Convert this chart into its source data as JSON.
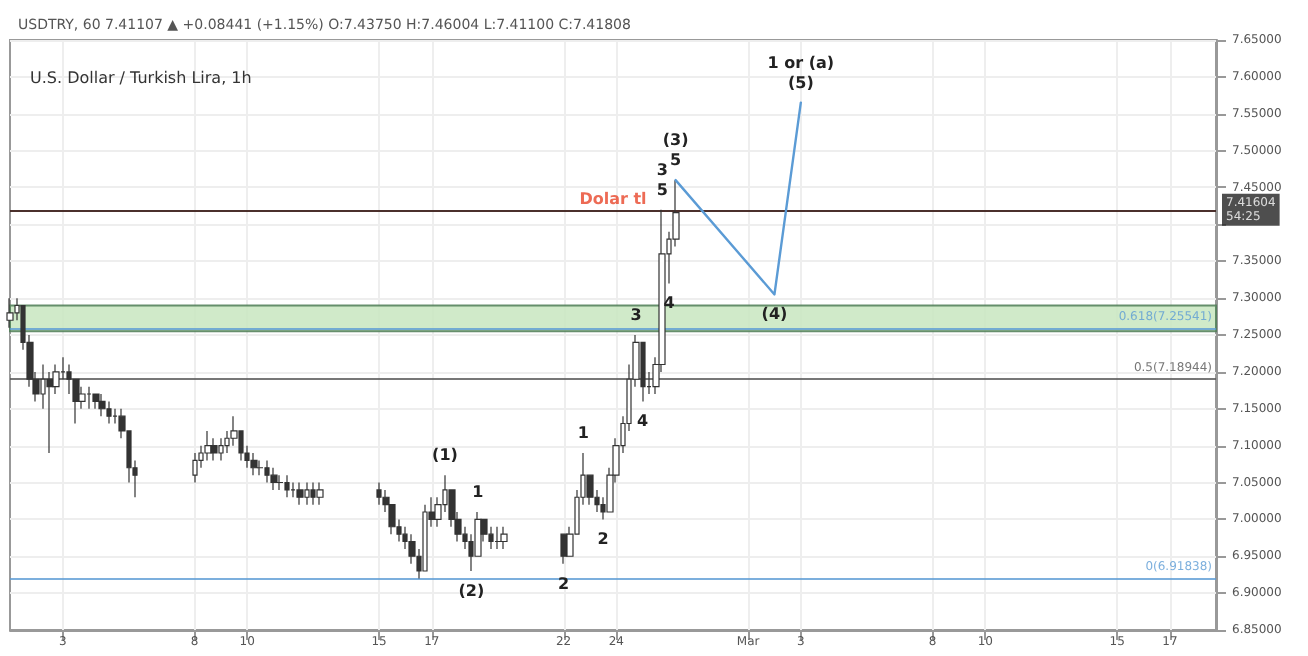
{
  "chart_data": {
    "type": "candlestick",
    "title": "U.S. Dollar / Turkish Lira, 1h",
    "subtitle": "USDTRY, 60 7.41107 ▲ +0.08441 (+1.15%) O:7.43750 H:7.46004 L:7.41100 C:7.41808",
    "color": "#333333",
    "grid": true,
    "xlim": [
      "--02-01T00:00",
      "--03-18T18:00"
    ],
    "xticks": [
      {
        "value": "--02-03",
        "label": "3"
      },
      {
        "value": "--02-08",
        "label": "8"
      },
      {
        "value": "--02-10",
        "label": "10"
      },
      {
        "value": "--02-15",
        "label": "15"
      },
      {
        "value": "--02-17",
        "label": "17"
      },
      {
        "value": "--02-22",
        "label": "22"
      },
      {
        "value": "--02-24",
        "label": "24"
      },
      {
        "value": "--03-01",
        "label": "Mar"
      },
      {
        "value": "--03-03",
        "label": "3"
      },
      {
        "value": "--03-08",
        "label": "8"
      },
      {
        "value": "--03-10",
        "label": "10"
      },
      {
        "value": "--03-15",
        "label": "15"
      },
      {
        "value": "--03-17",
        "label": "17"
      }
    ],
    "ylim": [
      6.85,
      7.65
    ],
    "yticks": [
      {
        "value": 6.85,
        "label": "6.85000"
      },
      {
        "value": 6.9,
        "label": "6.90000"
      },
      {
        "value": 6.95,
        "label": "6.95000"
      },
      {
        "value": 7.0,
        "label": "7.00000"
      },
      {
        "value": 7.05,
        "label": "7.05000"
      },
      {
        "value": 7.1,
        "label": "7.10000"
      },
      {
        "value": 7.15,
        "label": "7.15000"
      },
      {
        "value": 7.2,
        "label": "7.20000"
      },
      {
        "value": 7.25,
        "label": "7.25000"
      },
      {
        "value": 7.3,
        "label": "7.30000"
      },
      {
        "value": 7.35,
        "label": "7.35000"
      },
      {
        "value": 7.4,
        "label": null
      },
      {
        "value": 7.45,
        "label": "7.45000"
      },
      {
        "value": 7.5,
        "label": "7.50000"
      },
      {
        "value": 7.55,
        "label": "7.55000"
      },
      {
        "value": 7.6,
        "label": "7.60000"
      },
      {
        "value": 7.65,
        "label": "7.65000"
      }
    ],
    "x": [
      "--02-01T00:00",
      "--02-01T06:00",
      "--02-01T12:00",
      "--02-01T18:00",
      "--02-02T00:00",
      "--02-02T06:00",
      "--02-02T12:00",
      "--02-02T18:00",
      "--02-03T00:00",
      "--02-03T06:00",
      "--02-03T12:00",
      "--02-03T18:00",
      "--02-04T00:00",
      "--02-04T06:00",
      "--02-04T12:00",
      "--02-04T18:00",
      "--02-05T00:00",
      "--02-05T06:00",
      "--02-05T12:00",
      "--02-05T18:00",
      "--02-08T00:00",
      "--02-08T06:00",
      "--02-08T12:00",
      "--02-08T18:00",
      "--02-09T00:00",
      "--02-09T06:00",
      "--02-09T12:00",
      "--02-09T18:00",
      "--02-10T00:00",
      "--02-10T06:00",
      "--02-10T12:00",
      "--02-10T18:00",
      "--02-11T00:00",
      "--02-11T06:00",
      "--02-11T12:00",
      "--02-11T18:00",
      "--02-12T00:00",
      "--02-12T06:00",
      "--02-12T12:00",
      "--02-12T18:00",
      "--02-15T00:00",
      "--02-15T06:00",
      "--02-15T12:00",
      "--02-15T18:00",
      "--02-16T00:00",
      "--02-16T06:00",
      "--02-16T12:00",
      "--02-16T18:00",
      "--02-17T00:00",
      "--02-17T06:00",
      "--02-17T12:00",
      "--02-17T18:00",
      "--02-18T00:00",
      "--02-18T06:00",
      "--02-18T12:00",
      "--02-18T18:00",
      "--02-19T00:00",
      "--02-19T06:00",
      "--02-19T12:00",
      "--02-19T18:00",
      "--02-22T00:00",
      "--02-22T06:00",
      "--02-22T12:00",
      "--02-22T18:00",
      "--02-23T00:00",
      "--02-23T06:00",
      "--02-23T12:00",
      "--02-23T18:00",
      "--02-24T00:00",
      "--02-24T06:00",
      "--02-24T12:00",
      "--02-24T18:00",
      "--02-25T00:00",
      "--02-25T06:00",
      "--02-25T12:00",
      "--02-25T18:00",
      "--02-26T00:00",
      "--02-26T06:00"
    ],
    "ohlc": [
      [
        7.27,
        7.3,
        7.26,
        7.28
      ],
      [
        7.28,
        7.3,
        7.27,
        7.29
      ],
      [
        7.29,
        7.29,
        7.23,
        7.24
      ],
      [
        7.24,
        7.25,
        7.18,
        7.19
      ],
      [
        7.19,
        7.2,
        7.16,
        7.17
      ],
      [
        7.17,
        7.21,
        7.15,
        7.19
      ],
      [
        7.19,
        7.2,
        7.09,
        7.18
      ],
      [
        7.18,
        7.21,
        7.17,
        7.2
      ],
      [
        7.2,
        7.22,
        7.19,
        7.2
      ],
      [
        7.2,
        7.21,
        7.17,
        7.19
      ],
      [
        7.19,
        7.19,
        7.13,
        7.16
      ],
      [
        7.16,
        7.18,
        7.15,
        7.17
      ],
      [
        7.17,
        7.18,
        7.15,
        7.17
      ],
      [
        7.17,
        7.17,
        7.15,
        7.16
      ],
      [
        7.16,
        7.17,
        7.14,
        7.15
      ],
      [
        7.15,
        7.16,
        7.13,
        7.14
      ],
      [
        7.14,
        7.15,
        7.13,
        7.14
      ],
      [
        7.14,
        7.15,
        7.11,
        7.12
      ],
      [
        7.12,
        7.12,
        7.05,
        7.07
      ],
      [
        7.07,
        7.08,
        7.03,
        7.06
      ],
      [
        7.06,
        7.09,
        7.05,
        7.08
      ],
      [
        7.08,
        7.1,
        7.07,
        7.09
      ],
      [
        7.09,
        7.12,
        7.08,
        7.1
      ],
      [
        7.1,
        7.11,
        7.08,
        7.09
      ],
      [
        7.09,
        7.11,
        7.08,
        7.1
      ],
      [
        7.1,
        7.12,
        7.09,
        7.11
      ],
      [
        7.11,
        7.14,
        7.1,
        7.12
      ],
      [
        7.12,
        7.12,
        7.08,
        7.09
      ],
      [
        7.09,
        7.1,
        7.07,
        7.08
      ],
      [
        7.08,
        7.09,
        7.06,
        7.07
      ],
      [
        7.07,
        7.08,
        7.06,
        7.07
      ],
      [
        7.07,
        7.08,
        7.05,
        7.06
      ],
      [
        7.06,
        7.07,
        7.04,
        7.05
      ],
      [
        7.05,
        7.06,
        7.04,
        7.05
      ],
      [
        7.05,
        7.06,
        7.03,
        7.04
      ],
      [
        7.04,
        7.05,
        7.03,
        7.04
      ],
      [
        7.04,
        7.05,
        7.02,
        7.03
      ],
      [
        7.03,
        7.05,
        7.02,
        7.04
      ],
      [
        7.04,
        7.05,
        7.02,
        7.03
      ],
      [
        7.03,
        7.05,
        7.02,
        7.04
      ],
      [
        7.04,
        7.05,
        7.02,
        7.03
      ],
      [
        7.03,
        7.04,
        7.01,
        7.02
      ],
      [
        7.02,
        7.02,
        6.98,
        6.99
      ],
      [
        6.99,
        7.0,
        6.97,
        6.98
      ],
      [
        6.98,
        6.99,
        6.96,
        6.97
      ],
      [
        6.97,
        6.98,
        6.94,
        6.95
      ],
      [
        6.95,
        6.96,
        6.92,
        6.93
      ],
      [
        6.93,
        7.02,
        6.93,
        7.01
      ],
      [
        7.01,
        7.03,
        6.99,
        7.0
      ],
      [
        7.0,
        7.03,
        6.99,
        7.02
      ],
      [
        7.02,
        7.06,
        7.01,
        7.04
      ],
      [
        7.04,
        7.04,
        6.99,
        7.0
      ],
      [
        7.0,
        7.01,
        6.97,
        6.98
      ],
      [
        6.98,
        6.99,
        6.96,
        6.97
      ],
      [
        6.97,
        6.98,
        6.93,
        6.95
      ],
      [
        6.95,
        7.01,
        6.95,
        7.0
      ],
      [
        7.0,
        7.0,
        6.97,
        6.98
      ],
      [
        6.98,
        6.99,
        6.96,
        6.97
      ],
      [
        6.97,
        6.99,
        6.96,
        6.97
      ],
      [
        6.97,
        6.99,
        6.96,
        6.98
      ],
      [
        6.98,
        6.98,
        6.94,
        6.95
      ],
      [
        6.95,
        6.99,
        6.95,
        6.98
      ],
      [
        6.98,
        7.04,
        6.98,
        7.03
      ],
      [
        7.03,
        7.09,
        7.02,
        7.06
      ],
      [
        7.06,
        7.06,
        7.02,
        7.03
      ],
      [
        7.03,
        7.04,
        7.01,
        7.02
      ],
      [
        7.02,
        7.03,
        7.0,
        7.01
      ],
      [
        7.01,
        7.07,
        7.01,
        7.06
      ],
      [
        7.06,
        7.11,
        7.05,
        7.1
      ],
      [
        7.1,
        7.14,
        7.09,
        7.13
      ],
      [
        7.13,
        7.21,
        7.12,
        7.19
      ],
      [
        7.19,
        7.25,
        7.18,
        7.24
      ],
      [
        7.24,
        7.24,
        7.16,
        7.18
      ],
      [
        7.18,
        7.2,
        7.17,
        7.18
      ],
      [
        7.18,
        7.22,
        7.17,
        7.21
      ],
      [
        7.21,
        7.42,
        7.2,
        7.36
      ],
      [
        7.36,
        7.39,
        7.32,
        7.38
      ],
      [
        7.38,
        7.46,
        7.37,
        7.41604
      ]
    ],
    "series": [
      {
        "type": "line",
        "color": "#5b9bd5",
        "x": [
          "--02-26T06:00",
          "--03-02T00:00",
          "--03-03T00:00"
        ],
        "values": [
          7.46,
          7.305,
          7.565
        ]
      }
    ],
    "ref_lines": [
      {
        "axis": "y",
        "value": 7.42,
        "label": "Dolar tl",
        "color": "#e8462b"
      },
      {
        "axis": "y",
        "value": 7.41604,
        "label": "7.41604\n54:25",
        "color": "#222222"
      },
      {
        "axis": "y",
        "value": 7.25541,
        "label": "0.618(7.25541)",
        "color": "#5b9bd5"
      },
      {
        "axis": "y",
        "value": 7.18944,
        "label": "0.5(7.18944)",
        "color": "#555555"
      },
      {
        "axis": "y",
        "value": 6.91838,
        "label": "0(6.91838)",
        "color": "#5b9bd5"
      }
    ],
    "bands": [
      {
        "axis": "y",
        "from": 7.255,
        "to": 7.29,
        "color": "#c8e6c0"
      }
    ],
    "annotations": [
      {
        "text": "(1)",
        "x": "--02-17T12:00",
        "y": 7.06
      },
      {
        "text": "(2)",
        "x": "--02-18T12:00",
        "y": 6.93
      },
      {
        "text": "1",
        "x": "--02-18T18:00",
        "y": 7.01
      },
      {
        "text": "2",
        "x": "--02-22T00:00",
        "y": 6.94
      },
      {
        "text": "1",
        "x": "--02-22T18:00",
        "y": 7.09
      },
      {
        "text": "2",
        "x": "--02-23T12:00",
        "y": 7.0
      },
      {
        "text": "3",
        "x": "--02-24T18:00",
        "y": 7.25
      },
      {
        "text": "4",
        "x": "--02-25T00:00",
        "y": 7.16
      },
      {
        "text": "5",
        "x": "--02-25T18:00",
        "y": 7.42
      },
      {
        "text": "3",
        "x": "--02-25T18:00",
        "y": 7.42
      },
      {
        "text": "4",
        "x": "--02-26T00:00",
        "y": 7.32
      },
      {
        "text": "5",
        "x": "--02-26T06:00",
        "y": 7.46
      },
      {
        "text": "(3)",
        "x": "--02-26T06:00",
        "y": 7.46
      },
      {
        "text": "(4)",
        "x": "--03-02T00:00",
        "y": 7.305
      },
      {
        "text": "(5)",
        "x": "--03-03T00:00",
        "y": 7.565
      },
      {
        "text": "1 or (a)",
        "x": "--03-03T00:00",
        "y": 7.565
      }
    ]
  }
}
